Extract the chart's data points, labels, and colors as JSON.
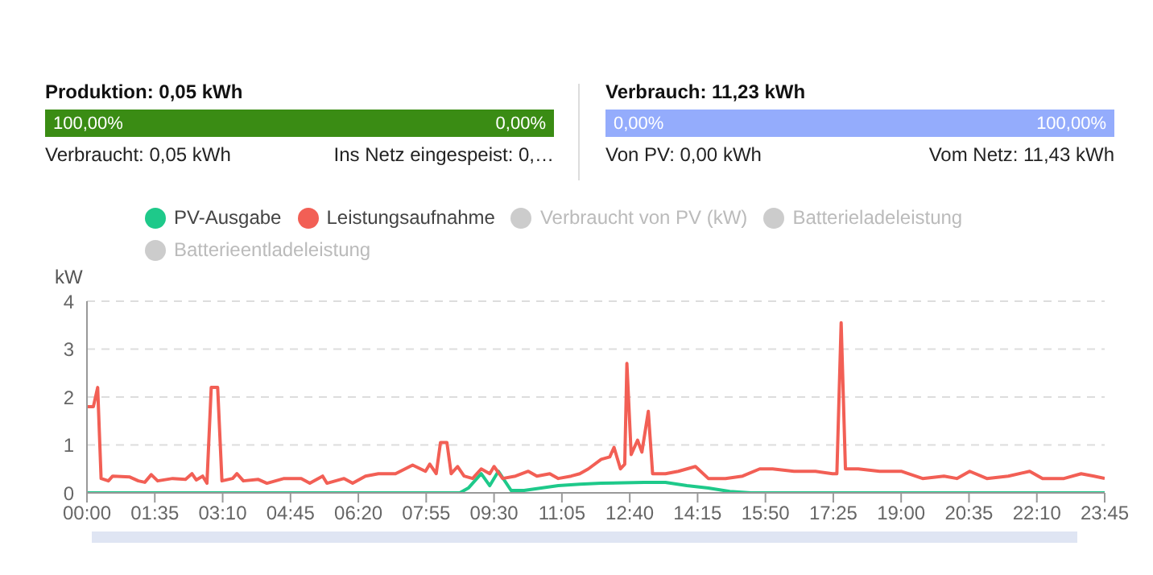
{
  "chart_data": {
    "type": "line",
    "ylabel": "kW",
    "annotations": [
      "Produktion: 0,05 kWh",
      "100,00%",
      "0,00%",
      "Verbraucht: 0,05 kWh",
      "Ins Netz eingespeist: 0,…",
      "Verbrauch: 11,23 kWh",
      "0,00%",
      "100,00%",
      "Von PV: 0,00 kWh",
      "Vom Netz: 11,43 kWh"
    ],
    "xlim": [
      0,
      23.75
    ],
    "xticks": [
      {
        "value": 0,
        "label": "00:00"
      },
      {
        "value": 1.5833,
        "label": "01:35"
      },
      {
        "value": 3.1667,
        "label": "03:10"
      },
      {
        "value": 4.75,
        "label": "04:45"
      },
      {
        "value": 6.3333,
        "label": "06:20"
      },
      {
        "value": 7.9167,
        "label": "07:55"
      },
      {
        "value": 9.5,
        "label": "09:30"
      },
      {
        "value": 11.0833,
        "label": "11:05"
      },
      {
        "value": 12.6667,
        "label": "12:40"
      },
      {
        "value": 14.25,
        "label": "14:15"
      },
      {
        "value": 15.8333,
        "label": "15:50"
      },
      {
        "value": 17.4167,
        "label": "17:25"
      },
      {
        "value": 19,
        "label": "19:00"
      },
      {
        "value": 20.5833,
        "label": "20:35"
      },
      {
        "value": 22.1667,
        "label": "22:10"
      },
      {
        "value": 23.75,
        "label": "23:45"
      }
    ],
    "ylim": [
      0,
      4
    ],
    "yticks": [
      0,
      1,
      2,
      3,
      4
    ],
    "grid": "y",
    "legend": "top",
    "marker": "none",
    "line_style": "solid",
    "series": [
      {
        "name": "PV-Ausgabe",
        "color": "#1ec98a",
        "x": [
          0,
          8.7,
          8.9,
          9.2,
          9.4,
          9.6,
          9.9,
          10.2,
          10.6,
          11,
          11.5,
          12,
          13,
          13.5,
          14,
          14.5,
          15,
          15.5,
          23.75
        ],
        "values": [
          0,
          0,
          0.1,
          0.4,
          0.15,
          0.45,
          0.05,
          0.05,
          0.1,
          0.15,
          0.18,
          0.2,
          0.22,
          0.22,
          0.15,
          0.1,
          0.03,
          0,
          0
        ]
      },
      {
        "name": "Leistungsaufnahme",
        "color": "#f25f55",
        "x": [
          0,
          0.15,
          0.25,
          0.33,
          0.5,
          0.6,
          1,
          1.2,
          1.35,
          1.5,
          1.65,
          2,
          2.3,
          2.45,
          2.55,
          2.7,
          2.8,
          2.9,
          3.05,
          3.15,
          3.4,
          3.5,
          3.65,
          4,
          4.2,
          4.6,
          5,
          5.2,
          5.5,
          5.6,
          6,
          6.2,
          6.5,
          6.8,
          7.2,
          7.6,
          7.9,
          8,
          8.15,
          8.25,
          8.4,
          8.5,
          8.65,
          8.8,
          9,
          9.2,
          9.4,
          9.5,
          9.7,
          10,
          10.3,
          10.5,
          10.8,
          11,
          11.3,
          11.5,
          11.7,
          12,
          12.2,
          12.3,
          12.45,
          12.55,
          12.6,
          12.7,
          12.85,
          12.95,
          13.1,
          13.2,
          13.5,
          13.8,
          14.2,
          14.5,
          14.9,
          15.3,
          15.7,
          16,
          16.5,
          17,
          17.4,
          17.5,
          17.6,
          17.7,
          18,
          18.5,
          19,
          19.5,
          20,
          20.3,
          20.6,
          21,
          21.5,
          22,
          22.3,
          22.8,
          23.2,
          23.5,
          23.75
        ],
        "values": [
          1.8,
          1.8,
          2.2,
          0.3,
          0.25,
          0.35,
          0.33,
          0.25,
          0.22,
          0.38,
          0.25,
          0.3,
          0.28,
          0.4,
          0.27,
          0.35,
          0.2,
          2.2,
          2.2,
          0.25,
          0.3,
          0.4,
          0.25,
          0.28,
          0.2,
          0.3,
          0.3,
          0.2,
          0.35,
          0.2,
          0.3,
          0.2,
          0.35,
          0.4,
          0.4,
          0.58,
          0.45,
          0.6,
          0.4,
          1.05,
          1.05,
          0.4,
          0.55,
          0.35,
          0.3,
          0.5,
          0.4,
          0.55,
          0.3,
          0.35,
          0.45,
          0.35,
          0.4,
          0.3,
          0.35,
          0.4,
          0.5,
          0.7,
          0.75,
          0.95,
          0.5,
          0.6,
          2.7,
          0.8,
          1.1,
          0.85,
          1.7,
          0.4,
          0.4,
          0.45,
          0.55,
          0.3,
          0.3,
          0.35,
          0.5,
          0.5,
          0.45,
          0.45,
          0.4,
          0.4,
          3.55,
          0.5,
          0.5,
          0.45,
          0.45,
          0.3,
          0.35,
          0.3,
          0.45,
          0.3,
          0.35,
          0.45,
          0.3,
          0.3,
          0.4,
          0.35,
          0.3
        ]
      },
      {
        "name": "Verbraucht von PV (kW)",
        "color": "#cccccc"
      },
      {
        "name": "Batterieladeleistung",
        "color": "#cccccc"
      },
      {
        "name": "Batterieentladeleistung",
        "color": "#cccccc"
      }
    ]
  }
}
